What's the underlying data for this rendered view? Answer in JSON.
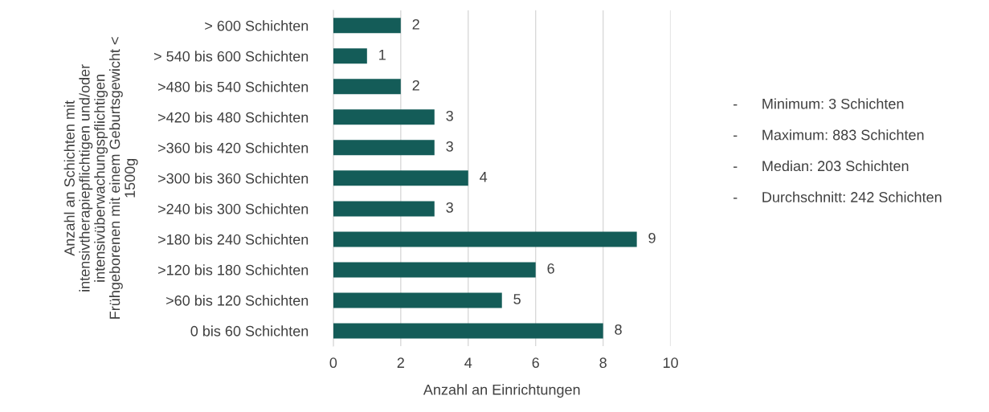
{
  "chart_data": {
    "type": "bar",
    "orientation": "horizontal",
    "categories": [
      "> 600 Schichten",
      "> 540 bis 600 Schichten",
      ">480 bis 540 Schichten",
      ">420 bis 480 Schichten",
      ">360 bis 420 Schichten",
      ">300 bis 360 Schichten",
      ">240 bis 300 Schichten",
      ">180 bis 240 Schichten",
      ">120 bis 180 Schichten",
      ">60 bis 120 Schichten",
      "0 bis 60 Schichten"
    ],
    "values": [
      2,
      1,
      2,
      3,
      3,
      4,
      3,
      9,
      6,
      5,
      8
    ],
    "color": "#145c58",
    "xlim": [
      0,
      10
    ],
    "xticks": [
      0,
      2,
      4,
      6,
      8,
      10
    ],
    "grid": "x",
    "data_labels": true,
    "xlabel": "Anzahl an Einrichtungen",
    "ylabel": "Anzahl an Schichten mit\nintensivtherapiepflichtigen und/oder\nintensivüberwachungspflichtigen\nFrühgeborenen mit einem Geburtsgewicht <\n1500g",
    "annotations": [
      "- Minimum: 3 Schichten",
      "- Maximum: 883 Schichten",
      "- Median: 203 Schichten",
      "- Durchschnitt: 242 Schichten"
    ]
  }
}
